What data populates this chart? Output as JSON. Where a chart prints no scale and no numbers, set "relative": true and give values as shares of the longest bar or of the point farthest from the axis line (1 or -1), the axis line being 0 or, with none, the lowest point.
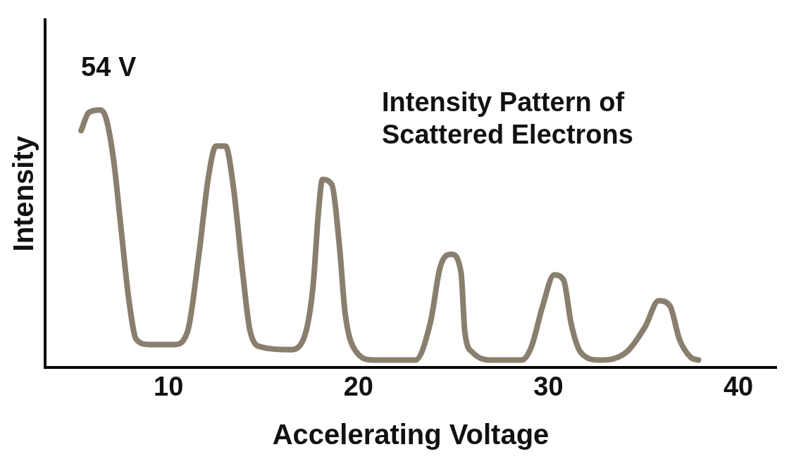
{
  "chart_data": {
    "type": "line",
    "relative": true,
    "xlabel": "Accelerating Voltage",
    "ylabel": "Intensity",
    "x": [
      5.4,
      5.8,
      6.4,
      6.7,
      7.1,
      7.5,
      7.9,
      8.3,
      9.0,
      10.3,
      11.0,
      11.6,
      12.1,
      12.5,
      13.0,
      13.4,
      13.9,
      14.3,
      14.9,
      16.4,
      17.1,
      17.6,
      17.9,
      18.1,
      18.6,
      19.0,
      19.3,
      19.9,
      20.8,
      23.0,
      23.8,
      24.3,
      24.9,
      25.4,
      25.6,
      26.0,
      27.1,
      28.6,
      29.1,
      29.7,
      30.3,
      30.8,
      31.2,
      31.7,
      32.7,
      34.1,
      35.1,
      35.8,
      36.4,
      36.9,
      37.5,
      37.9
    ],
    "series": [
      {
        "color": "#8a7f6e",
        "values": [
          0.92,
          0.99,
          1.0,
          0.97,
          0.81,
          0.54,
          0.27,
          0.11,
          0.09,
          0.09,
          0.14,
          0.44,
          0.74,
          0.86,
          0.86,
          0.71,
          0.37,
          0.14,
          0.08,
          0.07,
          0.11,
          0.31,
          0.61,
          0.73,
          0.71,
          0.47,
          0.21,
          0.06,
          0.03,
          0.03,
          0.18,
          0.39,
          0.44,
          0.37,
          0.14,
          0.06,
          0.03,
          0.03,
          0.08,
          0.24,
          0.36,
          0.34,
          0.17,
          0.06,
          0.03,
          0.06,
          0.16,
          0.26,
          0.24,
          0.11,
          0.04,
          0.03
        ]
      }
    ],
    "xlim": [
      3.5,
      42
    ],
    "xticks": [
      10,
      20,
      30,
      40
    ],
    "grid": false,
    "legend": false,
    "marker": "none",
    "line_style": "solid",
    "annotations": [
      {
        "text": "54 V",
        "x": 6.4,
        "y": 1.0
      },
      "Intensity Pattern of Scattered Electrons"
    ]
  }
}
